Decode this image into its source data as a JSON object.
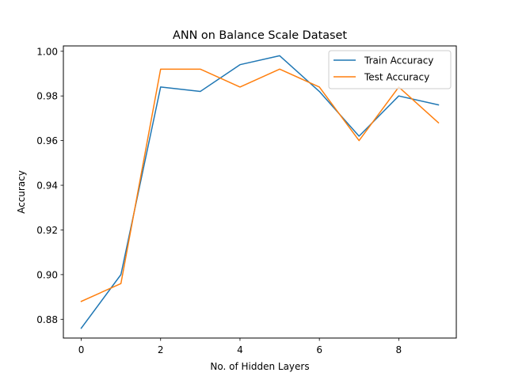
{
  "chart_data": {
    "type": "line",
    "title": "ANN on Balance Scale Dataset",
    "xlabel": "No. of Hidden Layers",
    "ylabel": "Accuracy",
    "x": [
      0,
      1,
      2,
      3,
      4,
      5,
      6,
      7,
      8,
      9
    ],
    "xlim": [
      -0.45,
      9.45
    ],
    "ylim": [
      0.8716,
      1.0024
    ],
    "xticks": [
      0,
      2,
      4,
      6,
      8
    ],
    "yticks": [
      0.88,
      0.9,
      0.92,
      0.94,
      0.96,
      0.98,
      1.0
    ],
    "xtick_labels": [
      "0",
      "2",
      "4",
      "6",
      "8"
    ],
    "ytick_labels": [
      "0.88",
      "0.90",
      "0.92",
      "0.94",
      "0.96",
      "0.98",
      "1.00"
    ],
    "grid": false,
    "legend_position": "top-right",
    "series": [
      {
        "name": "Train Accuracy",
        "color": "#1f77b4",
        "values": [
          0.876,
          0.9,
          0.984,
          0.982,
          0.994,
          0.998,
          0.982,
          0.962,
          0.98,
          0.976
        ]
      },
      {
        "name": "Test Accuracy",
        "color": "#ff7f0e",
        "values": [
          0.888,
          0.896,
          0.992,
          0.992,
          0.984,
          0.992,
          0.984,
          0.96,
          0.984,
          0.968
        ]
      }
    ]
  }
}
